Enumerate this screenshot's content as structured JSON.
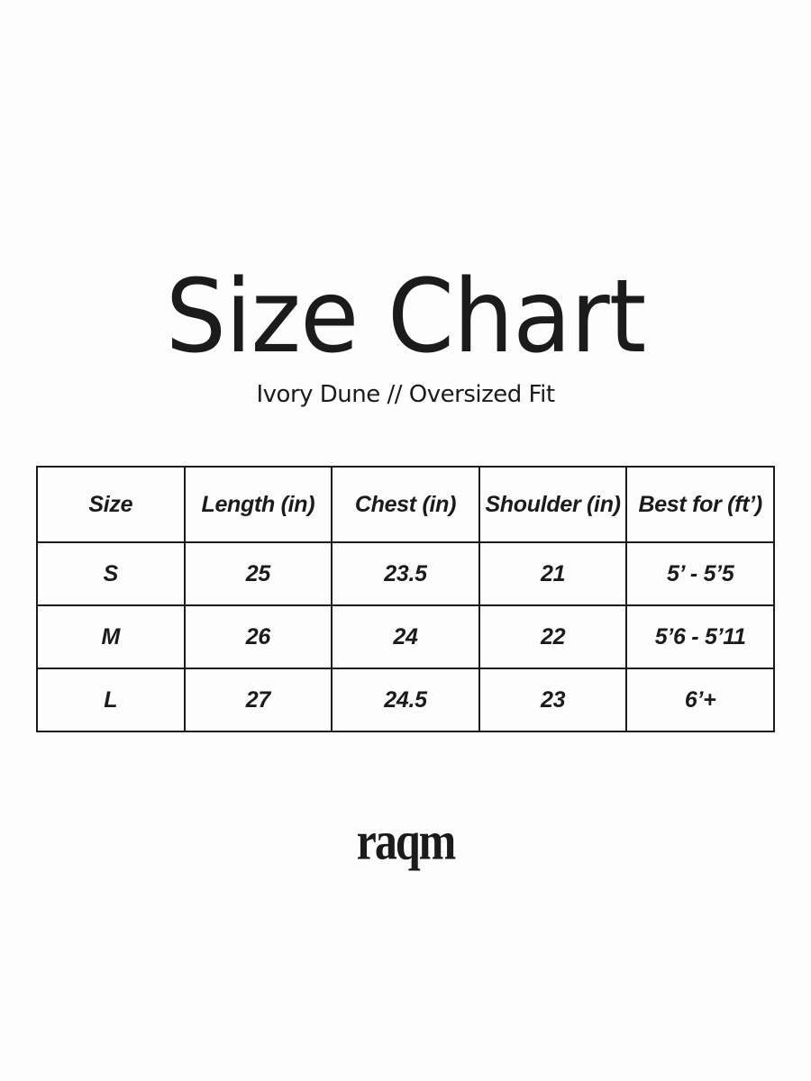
{
  "page": {
    "title": "Size Chart",
    "subtitle": "Ivory Dune // Oversized Fit",
    "brand_logo": "raqm"
  },
  "size_table": {
    "headers": [
      "Size",
      "Length (in)",
      "Chest (in)",
      "Shoulder (in)",
      "Best for (ft’)"
    ],
    "rows": [
      {
        "size": "S",
        "length_in": "25",
        "chest_in": "23.5",
        "shoulder_in": "21",
        "best_for": "5’ - 5’5"
      },
      {
        "size": "M",
        "length_in": "26",
        "chest_in": "24",
        "shoulder_in": "22",
        "best_for": "5’6 - 5’11"
      },
      {
        "size": "L",
        "length_in": "27",
        "chest_in": "24.5",
        "shoulder_in": "23",
        "best_for": "6’+"
      }
    ]
  },
  "colors": {
    "background": "#fdfdfd",
    "text": "#1b1b1b",
    "table_border": "#1b1b1b"
  }
}
